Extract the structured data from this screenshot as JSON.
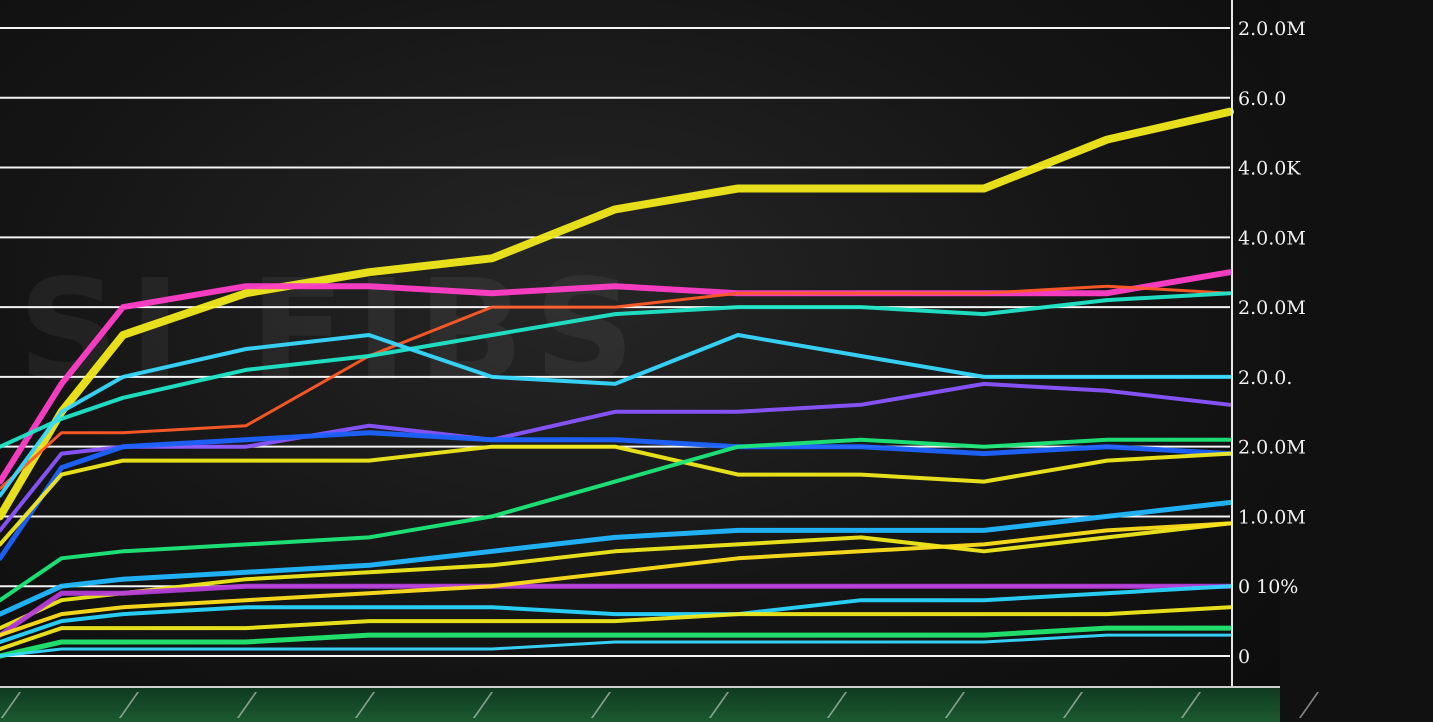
{
  "chart_data": {
    "type": "line",
    "title": "",
    "xlabel": "",
    "ylabel": "",
    "grid": true,
    "legend": "none",
    "y_axis_side": "right",
    "y_tick_labels": [
      "0",
      "0 10%",
      "1.0.0M",
      "2.0.0M",
      "2.0.0.",
      "2.0.0M",
      "4.0.0M",
      "4.0.0K",
      "6.0.0",
      "2.0.0M"
    ],
    "y_ticks": [
      0,
      1,
      2,
      3,
      4,
      5,
      6,
      7,
      8,
      9
    ],
    "ylim": [
      0,
      9.1
    ],
    "x": [
      0,
      0.5,
      1,
      2,
      3,
      4,
      5,
      6,
      7,
      8,
      9,
      10
    ],
    "xlim": [
      0,
      10
    ],
    "series": [
      {
        "color": "#f2ea1c",
        "width": 8,
        "values": [
          2.0,
          3.5,
          4.6,
          5.2,
          5.5,
          5.7,
          6.4,
          6.7,
          6.7,
          6.7,
          7.4,
          7.8
        ]
      },
      {
        "color": "#ff3ec8",
        "width": 6,
        "values": [
          2.5,
          3.9,
          5.0,
          5.3,
          5.3,
          5.2,
          5.3,
          5.2,
          5.2,
          5.2,
          5.2,
          5.5
        ]
      },
      {
        "color": "#ff5a28",
        "width": 3,
        "values": [
          2.4,
          3.2,
          3.2,
          3.3,
          4.3,
          5.0,
          5.0,
          5.2,
          5.2,
          5.2,
          5.3,
          5.2
        ]
      },
      {
        "color": "#20e6c8",
        "width": 4,
        "values": [
          3.0,
          3.4,
          3.7,
          4.1,
          4.3,
          4.6,
          4.9,
          5.0,
          5.0,
          4.9,
          5.1,
          5.2
        ]
      },
      {
        "color": "#38d8ff",
        "width": 4,
        "values": [
          2.3,
          3.5,
          4.0,
          4.4,
          4.6,
          4.0,
          3.9,
          4.6,
          4.3,
          4.0,
          4.0,
          4.0
        ]
      },
      {
        "color": "#8a55ff",
        "width": 4,
        "values": [
          1.8,
          2.9,
          3.0,
          3.0,
          3.3,
          3.1,
          3.5,
          3.5,
          3.6,
          3.9,
          3.8,
          3.6
        ]
      },
      {
        "color": "#1e62ff",
        "width": 5,
        "values": [
          1.4,
          2.7,
          3.0,
          3.1,
          3.2,
          3.1,
          3.1,
          3.0,
          3.0,
          2.9,
          3.0,
          2.9
        ]
      },
      {
        "color": "#f2ea1c",
        "width": 4,
        "values": [
          1.6,
          2.6,
          2.8,
          2.8,
          2.8,
          3.0,
          3.0,
          2.6,
          2.6,
          2.5,
          2.8,
          2.9
        ]
      },
      {
        "color": "#1ee87a",
        "width": 4,
        "values": [
          0.8,
          1.4,
          1.5,
          1.6,
          1.7,
          2.0,
          2.5,
          3.0,
          3.1,
          3.0,
          3.1,
          3.1
        ]
      },
      {
        "color": "#22b8ff",
        "width": 5,
        "values": [
          0.6,
          1.0,
          1.1,
          1.2,
          1.3,
          1.5,
          1.7,
          1.8,
          1.8,
          1.8,
          2.0,
          2.2
        ]
      },
      {
        "color": "#f2ea1c",
        "width": 4,
        "values": [
          0.4,
          0.8,
          0.9,
          1.1,
          1.2,
          1.3,
          1.5,
          1.6,
          1.7,
          1.5,
          1.7,
          1.9
        ]
      },
      {
        "color": "#b43cd8",
        "width": 5,
        "values": [
          0.3,
          0.9,
          0.9,
          1.0,
          1.0,
          1.0,
          1.0,
          1.0,
          1.0,
          1.0,
          1.0,
          1.0
        ]
      },
      {
        "color": "#ffe01c",
        "width": 4,
        "values": [
          0.3,
          0.6,
          0.7,
          0.8,
          0.9,
          1.0,
          1.2,
          1.4,
          1.5,
          1.6,
          1.8,
          1.9
        ]
      },
      {
        "color": "#2ad6ff",
        "width": 4,
        "values": [
          0.2,
          0.5,
          0.6,
          0.7,
          0.7,
          0.7,
          0.6,
          0.6,
          0.8,
          0.8,
          0.9,
          1.0
        ]
      },
      {
        "color": "#f2ea1c",
        "width": 4,
        "values": [
          0.1,
          0.4,
          0.4,
          0.4,
          0.5,
          0.5,
          0.5,
          0.6,
          0.6,
          0.6,
          0.6,
          0.7
        ]
      },
      {
        "color": "#22e870",
        "width": 5,
        "values": [
          0.0,
          0.2,
          0.2,
          0.2,
          0.3,
          0.3,
          0.3,
          0.3,
          0.3,
          0.3,
          0.4,
          0.4
        ]
      },
      {
        "color": "#38d8ff",
        "width": 3,
        "values": [
          0.0,
          0.1,
          0.1,
          0.1,
          0.1,
          0.1,
          0.2,
          0.2,
          0.2,
          0.2,
          0.3,
          0.3
        ]
      }
    ]
  }
}
